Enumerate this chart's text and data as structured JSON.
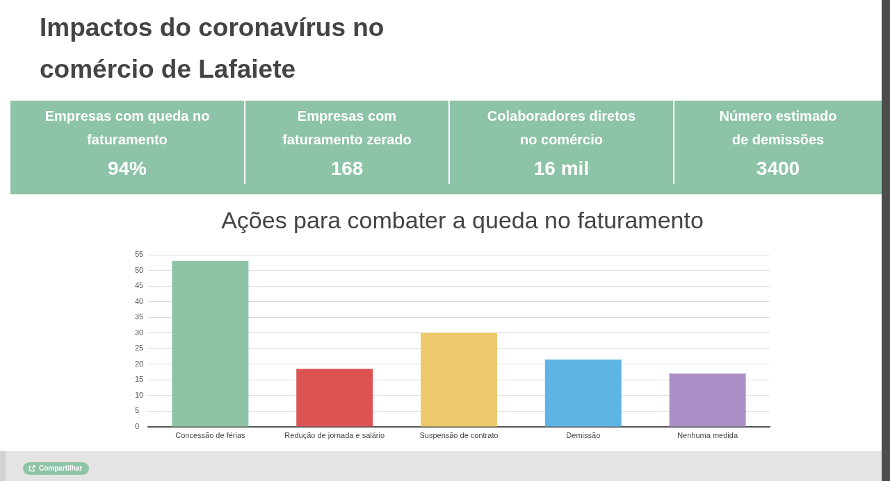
{
  "chart_data": [
    {
      "type": "other",
      "title": "Impactos do coronavírus no comércio de Lafaiete",
      "categories": [
        "Empresas com queda no faturamento",
        "Empresas com faturamento zerado",
        "Colaboradores diretos no comércio",
        "Número estimado de demissões"
      ],
      "value_labels": [
        "94%",
        "168",
        "16 mil",
        "3400"
      ],
      "color": "#8dc3a7"
    },
    {
      "type": "bar",
      "title": "Ações para combater a queda no faturamento",
      "categories": [
        "Concessão de férias",
        "Redução de jornada e salário",
        "Suspensão de contrato",
        "Demissão",
        "Nenhuma medida"
      ],
      "values": [
        53,
        18.5,
        30,
        21.5,
        17
      ],
      "colors": [
        "#8ec3a6",
        "#dc5354",
        "#eec96b",
        "#5eb5e4",
        "#ab8fc6"
      ],
      "ylim": [
        0,
        55
      ],
      "yticks": [
        0,
        5,
        10,
        15,
        20,
        25,
        30,
        35,
        40,
        45,
        50,
        55
      ],
      "grid": "y",
      "annotations": [
        "Compartilhar"
      ]
    }
  ]
}
